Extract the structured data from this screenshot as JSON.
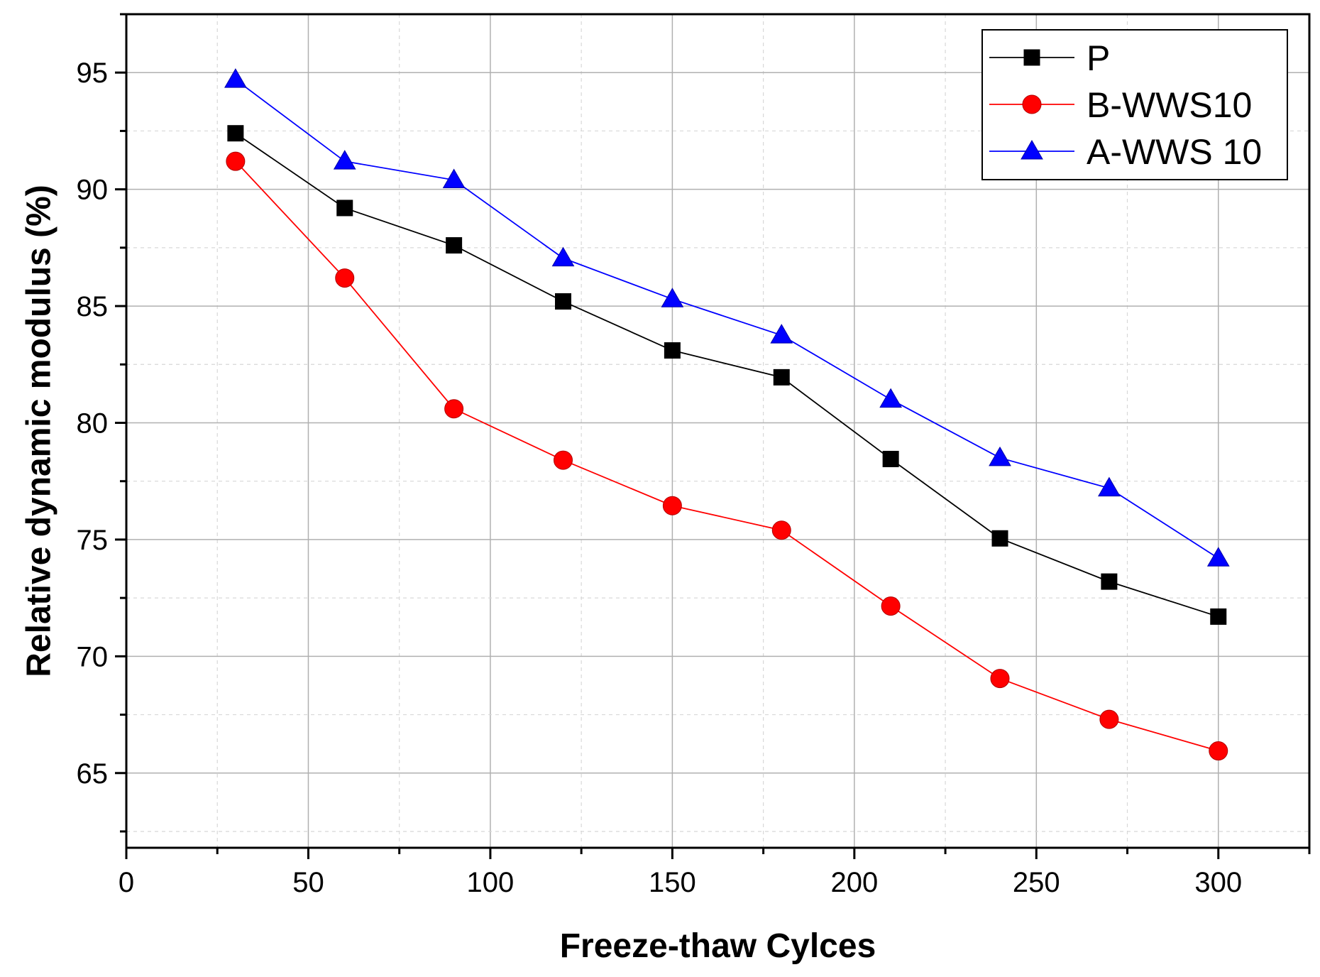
{
  "chart_data": {
    "type": "line",
    "title": "",
    "xlabel": "Freeze-thaw Cylces",
    "ylabel": "Relative dynamic modulus (%)",
    "xlim": [
      0,
      325
    ],
    "ylim": [
      61.8,
      97.5
    ],
    "x_ticks": [
      0,
      50,
      100,
      150,
      200,
      250,
      300
    ],
    "y_ticks": [
      65,
      70,
      75,
      80,
      85,
      90,
      95
    ],
    "grid": true,
    "legend_position": "top-right",
    "x": [
      30,
      60,
      90,
      120,
      150,
      180,
      210,
      240,
      270,
      300
    ],
    "series": [
      {
        "name": "P",
        "marker": "square",
        "color": "#000000",
        "values": [
          92.4,
          89.2,
          87.6,
          85.2,
          83.1,
          81.95,
          78.45,
          75.05,
          73.2,
          71.7
        ]
      },
      {
        "name": "B-WWS10",
        "marker": "circle",
        "color": "#ff0000",
        "values": [
          91.2,
          86.2,
          80.6,
          78.4,
          76.45,
          75.4,
          72.15,
          69.05,
          67.3,
          65.95
        ]
      },
      {
        "name": "A-WWS 10",
        "marker": "triangle",
        "color": "#0000ff",
        "values": [
          94.7,
          91.2,
          90.4,
          87.05,
          85.3,
          83.75,
          81.0,
          78.5,
          77.2,
          74.2
        ]
      }
    ]
  }
}
